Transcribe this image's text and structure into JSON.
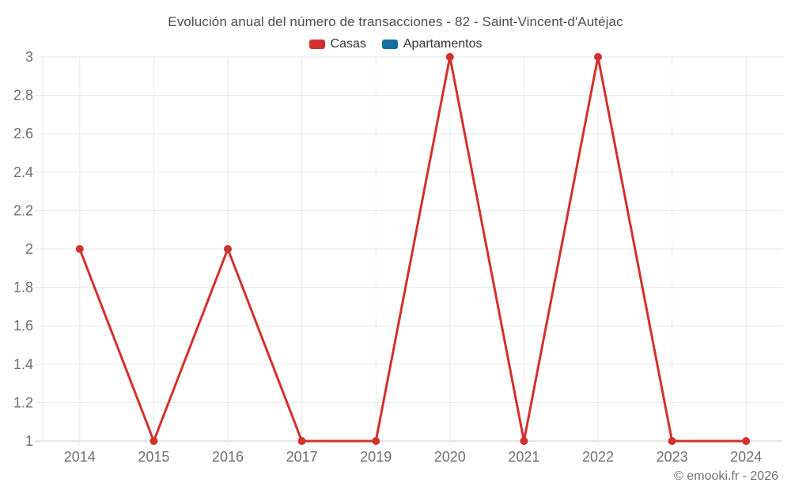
{
  "copyright": "© emooki.fr - 2026",
  "chart_data": {
    "type": "line",
    "title": "Evolución anual del número de transacciones - 82 - Saint-Vincent-d'Autéjac",
    "categories": [
      "2014",
      "2015",
      "2016",
      "2017",
      "2019",
      "2020",
      "2021",
      "2022",
      "2023",
      "2024"
    ],
    "series": [
      {
        "name": "Casas",
        "color": "#d2312d",
        "values": [
          2,
          1,
          2,
          1,
          1,
          3,
          1,
          3,
          1,
          1
        ]
      },
      {
        "name": "Apartamentos",
        "color": "#136fa0",
        "values": []
      }
    ],
    "xlabel": "",
    "ylabel": "",
    "ylim": [
      1,
      3
    ],
    "ytick_step": 0.2,
    "grid": true,
    "legend_position": "top",
    "colors": {
      "gridline": "#e7e7e7",
      "axis_line": "#cfcfcf",
      "tick_label": "#6f6f6f",
      "title_text": "#4d4d4d"
    }
  }
}
